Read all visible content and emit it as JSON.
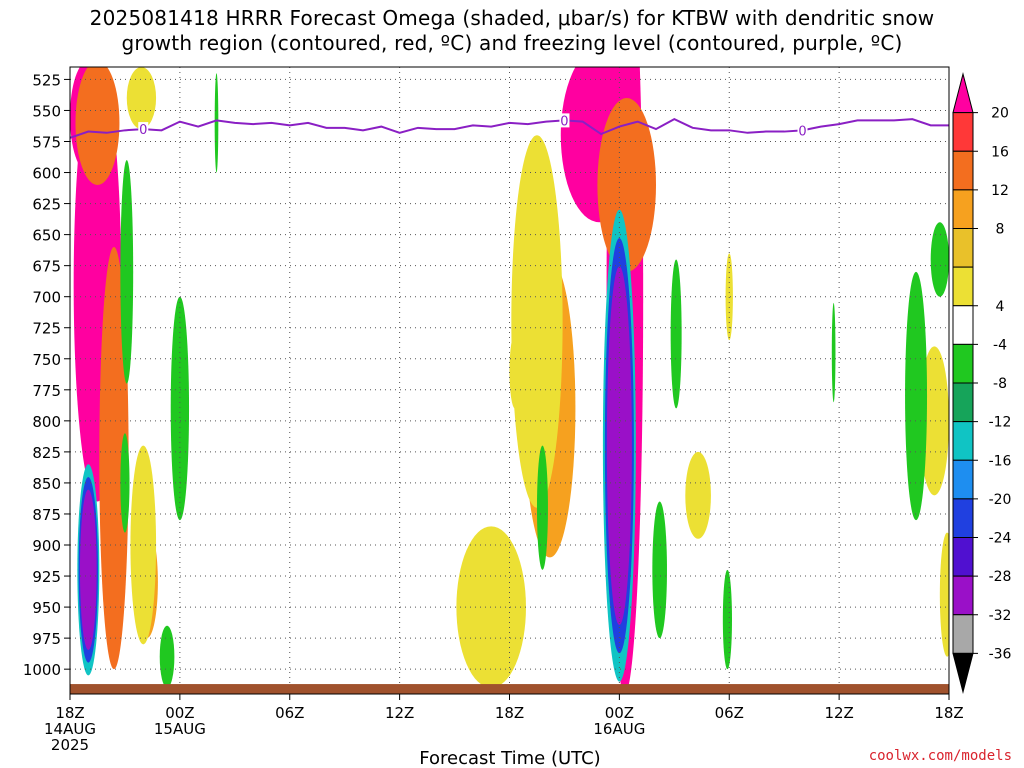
{
  "title": {
    "line1": "2025081418 HRRR Forecast Omega (shaded, μbar/s) for KTBW with dendritic snow",
    "line2": "growth region (contoured, red, ºC) and freezing level (contoured, purple, ºC)"
  },
  "xlabel": "Forecast Time (UTC)",
  "watermark": "coolwx.com/models",
  "colors": {
    "accent": "#8a1fc4",
    "terrain": "#a0522d"
  },
  "chart_data": {
    "type": "heatmap",
    "title": "2025081418 HRRR Forecast Omega (shaded, μbar/s) for KTBW with dendritic snow growth region (contoured, red, ºC) and freezing level (contoured, purple, ºC)",
    "xlabel": "Forecast Time (UTC)",
    "ylabel": "",
    "x_hours": [
      0,
      6,
      12,
      18,
      24,
      30,
      36,
      42,
      48
    ],
    "x_ticks": [
      {
        "hour": 0,
        "lines": [
          "18Z",
          "14AUG",
          "2025"
        ]
      },
      {
        "hour": 6,
        "lines": [
          "00Z",
          "15AUG"
        ]
      },
      {
        "hour": 12,
        "lines": [
          "06Z"
        ]
      },
      {
        "hour": 18,
        "lines": [
          "12Z"
        ]
      },
      {
        "hour": 24,
        "lines": [
          "18Z"
        ]
      },
      {
        "hour": 30,
        "lines": [
          "00Z",
          "16AUG"
        ]
      },
      {
        "hour": 36,
        "lines": [
          "06Z"
        ]
      },
      {
        "hour": 42,
        "lines": [
          "12Z"
        ]
      },
      {
        "hour": 48,
        "lines": [
          "18Z"
        ]
      }
    ],
    "y_ticks": [
      525,
      550,
      575,
      600,
      625,
      650,
      675,
      700,
      725,
      750,
      775,
      800,
      825,
      850,
      875,
      900,
      925,
      950,
      975,
      1000
    ],
    "ylim": [
      1020,
      515
    ],
    "grid": true,
    "colorbar": {
      "labels": [
        "20",
        "16",
        "12",
        "8",
        "4",
        "-4",
        "-8",
        "-12",
        "-16",
        "-20",
        "-24",
        "-28",
        "-32",
        "-36"
      ],
      "bins": [
        {
          "color": "#ff00a0"
        },
        {
          "color": "#ff3838"
        },
        {
          "color": "#f36e1f"
        },
        {
          "color": "#f6a11f"
        },
        {
          "color": "#e9c12a"
        },
        {
          "color": "#ece034"
        },
        {
          "color": "#ffffff"
        },
        {
          "color": "#20c820"
        },
        {
          "color": "#16a45a"
        },
        {
          "color": "#10c4c4"
        },
        {
          "color": "#1e8ef0"
        },
        {
          "color": "#2040e0"
        },
        {
          "color": "#5010d0"
        },
        {
          "color": "#9a10c8"
        },
        {
          "color": "#a8a8a8"
        },
        {
          "color": "#000000"
        }
      ]
    },
    "freezing_level": {
      "label": "0",
      "label_hours": [
        4,
        27,
        40
      ],
      "points": [
        [
          0,
          572
        ],
        [
          1,
          567
        ],
        [
          2,
          568
        ],
        [
          3,
          566
        ],
        [
          4,
          565
        ],
        [
          5,
          566
        ],
        [
          6,
          559
        ],
        [
          7,
          563
        ],
        [
          8,
          558
        ],
        [
          9,
          560
        ],
        [
          10,
          561
        ],
        [
          11,
          560
        ],
        [
          12,
          562
        ],
        [
          13,
          560
        ],
        [
          14,
          564
        ],
        [
          15,
          564
        ],
        [
          16,
          566
        ],
        [
          17,
          563
        ],
        [
          18,
          568
        ],
        [
          19,
          564
        ],
        [
          20,
          565
        ],
        [
          21,
          565
        ],
        [
          22,
          562
        ],
        [
          23,
          563
        ],
        [
          24,
          560
        ],
        [
          25,
          561
        ],
        [
          26,
          559
        ],
        [
          27,
          558
        ],
        [
          28,
          559
        ],
        [
          29,
          569
        ],
        [
          30,
          563
        ],
        [
          31,
          559
        ],
        [
          32,
          565
        ],
        [
          33,
          557
        ],
        [
          34,
          564
        ],
        [
          35,
          566
        ],
        [
          36,
          566
        ],
        [
          37,
          568
        ],
        [
          38,
          567
        ],
        [
          39,
          567
        ],
        [
          40,
          566
        ],
        [
          41,
          563
        ],
        [
          42,
          561
        ],
        [
          43,
          558
        ],
        [
          44,
          558
        ],
        [
          45,
          558
        ],
        [
          46,
          557
        ],
        [
          47,
          562
        ],
        [
          48,
          562
        ]
      ]
    },
    "omega_features": [
      {
        "bin": 0,
        "hour": 1.5,
        "pressure": 690,
        "hw": 1.3,
        "hp": 175
      },
      {
        "bin": 0,
        "hour": 1.0,
        "pressure": 555,
        "hw": 1.0,
        "hp": 45
      },
      {
        "bin": 0,
        "hour": 28.9,
        "pressure": 570,
        "hw": 2.1,
        "hp": 70
      },
      {
        "bin": 0,
        "hour": 30.3,
        "pressure": 700,
        "hw": 1.0,
        "hp": 320
      },
      {
        "bin": 2,
        "hour": 2.4,
        "pressure": 830,
        "hw": 0.8,
        "hp": 170
      },
      {
        "bin": 2,
        "hour": 1.5,
        "pressure": 560,
        "hw": 1.2,
        "hp": 50
      },
      {
        "bin": 2,
        "hour": 30.4,
        "pressure": 610,
        "hw": 1.6,
        "hp": 70
      },
      {
        "bin": 2,
        "hour": 23.2,
        "pressure": 940,
        "hw": 0.8,
        "hp": 45
      },
      {
        "bin": 3,
        "hour": 4.2,
        "pressure": 930,
        "hw": 0.6,
        "hp": 45
      },
      {
        "bin": 3,
        "hour": 26.2,
        "pressure": 790,
        "hw": 1.4,
        "hp": 120
      },
      {
        "bin": 5,
        "hour": 4.0,
        "pressure": 900,
        "hw": 0.7,
        "hp": 80
      },
      {
        "bin": 5,
        "hour": 3.9,
        "pressure": 540,
        "hw": 0.8,
        "hp": 25
      },
      {
        "bin": 5,
        "hour": 25.5,
        "pressure": 720,
        "hw": 1.4,
        "hp": 150
      },
      {
        "bin": 5,
        "hour": 23.0,
        "pressure": 950,
        "hw": 1.9,
        "hp": 65
      },
      {
        "bin": 5,
        "hour": 34.3,
        "pressure": 860,
        "hw": 0.7,
        "hp": 35
      },
      {
        "bin": 5,
        "hour": 36.0,
        "pressure": 700,
        "hw": 0.2,
        "hp": 35
      },
      {
        "bin": 5,
        "hour": 47.2,
        "pressure": 800,
        "hw": 0.8,
        "hp": 60
      },
      {
        "bin": 5,
        "hour": 47.9,
        "pressure": 940,
        "hw": 0.4,
        "hp": 50
      },
      {
        "bin": 5,
        "hour": 24.3,
        "pressure": 760,
        "hw": 0.3,
        "hp": 30
      },
      {
        "bin": 7,
        "hour": 3.1,
        "pressure": 680,
        "hw": 0.35,
        "hp": 90
      },
      {
        "bin": 7,
        "hour": 3.0,
        "pressure": 850,
        "hw": 0.25,
        "hp": 40
      },
      {
        "bin": 7,
        "hour": 6.0,
        "pressure": 790,
        "hw": 0.5,
        "hp": 90
      },
      {
        "bin": 7,
        "hour": 5.3,
        "pressure": 990,
        "hw": 0.4,
        "hp": 25
      },
      {
        "bin": 7,
        "hour": 8.0,
        "pressure": 560,
        "hw": 0.1,
        "hp": 40
      },
      {
        "bin": 7,
        "hour": 25.8,
        "pressure": 870,
        "hw": 0.3,
        "hp": 50
      },
      {
        "bin": 7,
        "hour": 32.2,
        "pressure": 920,
        "hw": 0.4,
        "hp": 55
      },
      {
        "bin": 7,
        "hour": 33.1,
        "pressure": 730,
        "hw": 0.3,
        "hp": 60
      },
      {
        "bin": 7,
        "hour": 35.9,
        "pressure": 960,
        "hw": 0.25,
        "hp": 40
      },
      {
        "bin": 7,
        "hour": 46.2,
        "pressure": 780,
        "hw": 0.6,
        "hp": 100
      },
      {
        "bin": 7,
        "hour": 47.5,
        "pressure": 670,
        "hw": 0.5,
        "hp": 30
      },
      {
        "bin": 7,
        "hour": 41.7,
        "pressure": 745,
        "hw": 0.1,
        "hp": 40
      },
      {
        "bin": 14,
        "hour": 1.0,
        "pressure": 920,
        "hw": 0.4,
        "hp": 70
      },
      {
        "bin": 15,
        "hour": 30.0,
        "pressure": 820,
        "hw": 0.75,
        "hp": 170
      }
    ],
    "negative_rings": [
      {
        "hour": 1.0,
        "pressure": 920,
        "hw": 0.6,
        "hp": 85,
        "bins": [
          9,
          11,
          13
        ]
      },
      {
        "hour": 30.0,
        "pressure": 820,
        "hw": 0.9,
        "hp": 190,
        "bins": [
          9,
          11,
          13
        ]
      }
    ]
  }
}
